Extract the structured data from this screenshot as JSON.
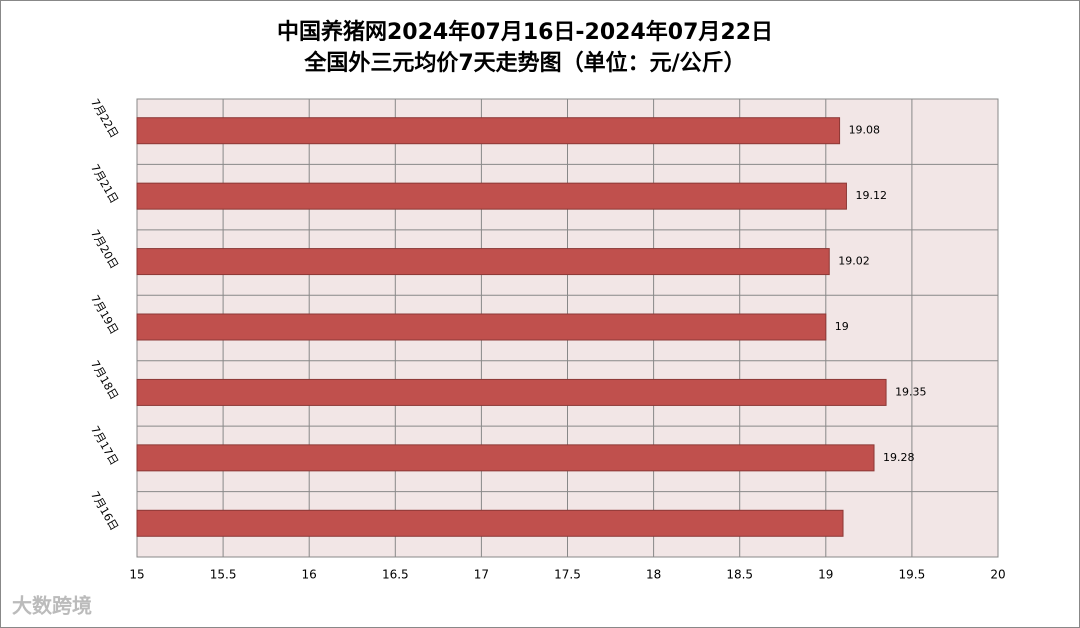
{
  "chart_data": {
    "type": "hbar",
    "title": "中国养猪网2024年07月16日-2024年07月22日",
    "subtitle": "全国外三元均价7天走势图（单位：元/公斤）",
    "categories": [
      "7月22日",
      "7月21日",
      "7月20日",
      "7月19日",
      "7月18日",
      "7月17日",
      "7月16日"
    ],
    "values": [
      19.08,
      19.12,
      19.02,
      19,
      19.35,
      19.28,
      19.1
    ],
    "value_labels": [
      "19.08",
      "19.12",
      "19.02",
      "19",
      "19.35",
      "19.28",
      null
    ],
    "color": "#c0504d",
    "xlim": [
      15,
      20
    ],
    "xticks": [
      15,
      15.5,
      16,
      16.5,
      17,
      17.5,
      18,
      18.5,
      19,
      19.5,
      20
    ],
    "grid": true,
    "watermark": "大数跨境"
  }
}
